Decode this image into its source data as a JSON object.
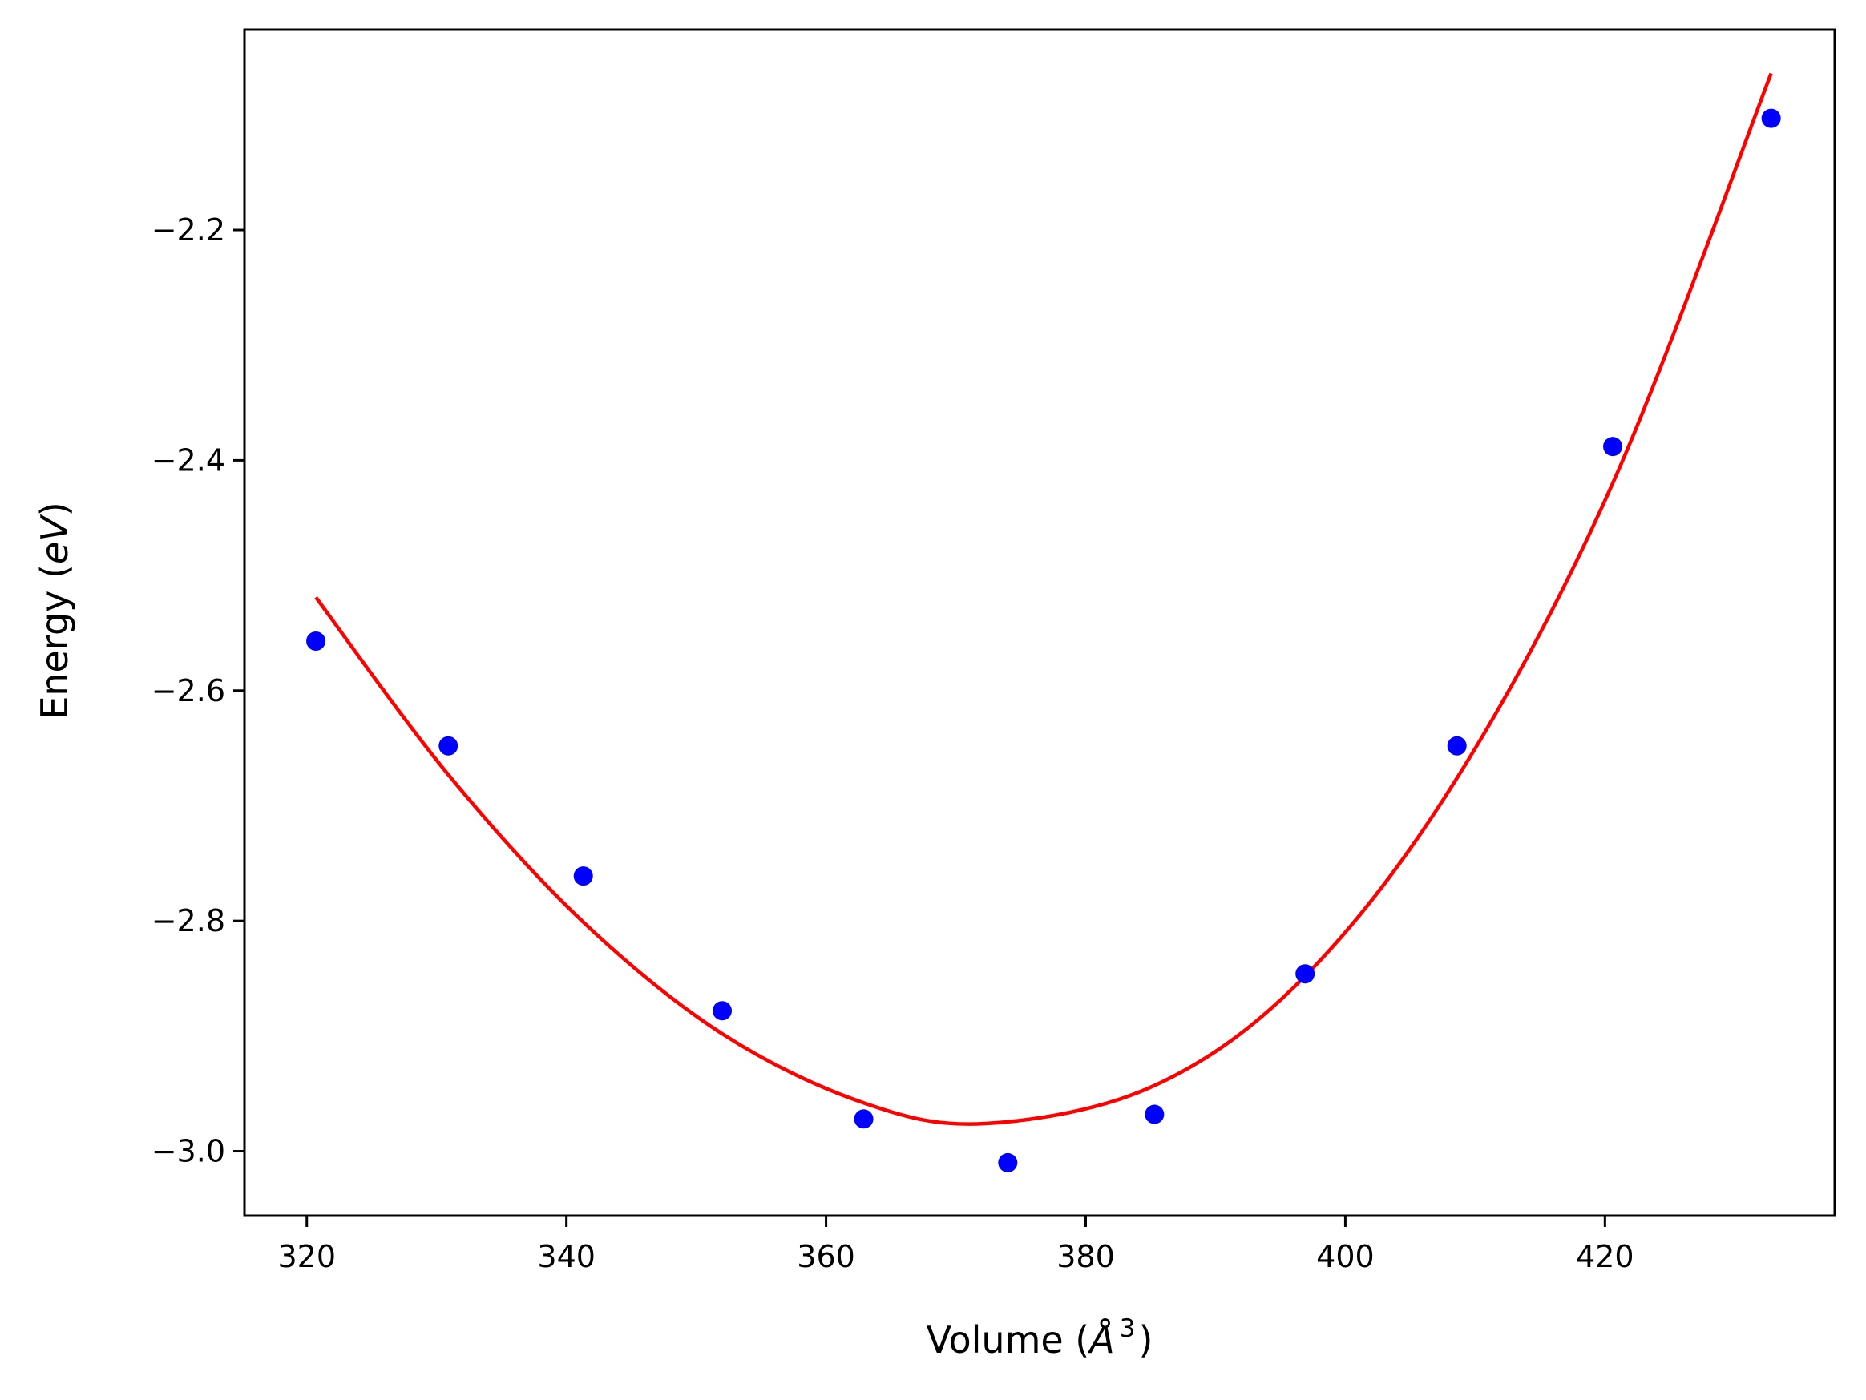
{
  "chart_data": {
    "type": "scatter",
    "title": "",
    "xlabel": "Volume (",
    "xlabel_symbol": "Å",
    "xlabel_exponent": "3",
    "xlabel_close": ")",
    "ylabel": "Energy (",
    "ylabel_unit": "eV",
    "ylabel_close": ")",
    "xlim": [
      315.2,
      437.7
    ],
    "ylim": [
      -3.056,
      -2.026
    ],
    "xticks": [
      320,
      340,
      360,
      380,
      400,
      420
    ],
    "yticks": [
      -3.0,
      -2.8,
      -2.6,
      -2.4,
      -2.2
    ],
    "ytick_labels": [
      "−3.0",
      "−2.8",
      "−2.6",
      "−2.4",
      "−2.2"
    ],
    "grid": false,
    "series": [
      {
        "name": "data",
        "kind": "points",
        "color": "#0000ff",
        "x": [
          320.7,
          330.9,
          341.3,
          352.0,
          362.9,
          374.0,
          385.3,
          396.9,
          408.6,
          420.6,
          432.8
        ],
        "y": [
          -2.557,
          -2.648,
          -2.761,
          -2.878,
          -2.972,
          -3.01,
          -2.968,
          -2.846,
          -2.648,
          -2.388,
          -2.103
        ]
      },
      {
        "name": "fit",
        "kind": "line",
        "color": "#ff0000",
        "x": [
          320.7,
          330.9,
          341.3,
          352.0,
          362.9,
          372.3,
          385.3,
          396.9,
          408.6,
          420.6,
          432.8
        ],
        "y": [
          -2.519,
          -2.673,
          -2.801,
          -2.898,
          -2.958,
          -2.976,
          -2.943,
          -2.848,
          -2.676,
          -2.42,
          -2.064
        ]
      }
    ]
  }
}
